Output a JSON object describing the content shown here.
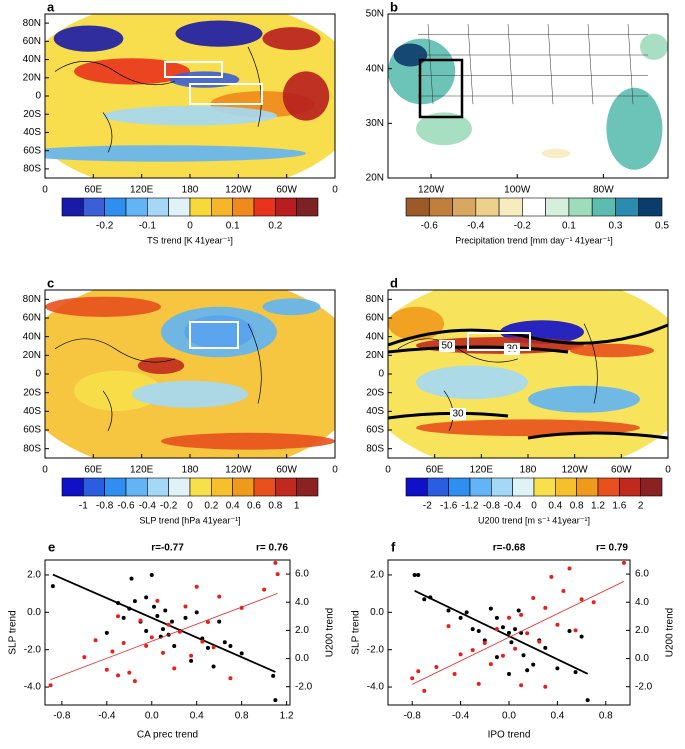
{
  "chart_data": [
    {
      "type": "map",
      "label": "a",
      "xlim": [
        0,
        360
      ],
      "ylim": [
        -90,
        90
      ],
      "xticks": [
        0,
        {
          "value": 60,
          "label": "60E"
        },
        {
          "value": 120,
          "label": "120E"
        },
        180,
        {
          "value": 240,
          "label": "120W"
        },
        {
          "value": 300,
          "label": "60W"
        },
        {
          "value": 360,
          "label": "0"
        }
      ],
      "yticks": [
        {
          "value": 80,
          "label": "80N"
        },
        {
          "value": 60,
          "label": "60N"
        },
        {
          "value": 40,
          "label": "40N"
        },
        {
          "value": 20,
          "label": "20N"
        },
        0,
        {
          "value": -20,
          "label": "20S"
        },
        {
          "value": -40,
          "label": "40S"
        },
        {
          "value": -60,
          "label": "60S"
        },
        {
          "value": -80,
          "label": "80S"
        }
      ],
      "colors": [
        "#1a1aa8",
        "#3a5fd6",
        "#2f8ff0",
        "#62b4f4",
        "#a4d8f6",
        "#dff2f8",
        "#f7d93a",
        "#f5b62c",
        "#f08a1c",
        "#e8341c",
        "#b81e1e",
        "#7d2222"
      ],
      "colorbar_ticks": [
        -0.2,
        -0.1,
        0,
        0.1,
        0.2
      ],
      "colorbar_label": "TS trend [K 41year⁻¹]"
    },
    {
      "type": "map",
      "label": "b",
      "xlim": [
        -130,
        -65
      ],
      "ylim": [
        20,
        50
      ],
      "xticks": [
        {
          "value": -120,
          "label": "120W"
        },
        {
          "value": -100,
          "label": "100W"
        },
        {
          "value": -80,
          "label": "80W"
        }
      ],
      "yticks": [
        {
          "value": 50,
          "label": "50N"
        },
        {
          "value": 40,
          "label": "40N"
        },
        {
          "value": 30,
          "label": "30N"
        },
        {
          "value": 20,
          "label": "20N"
        }
      ],
      "colors": [
        "#9c5a28",
        "#c0803c",
        "#d8a860",
        "#ecd08c",
        "#f6ecc0",
        "#ffffff",
        "#d4f0dc",
        "#9edcbc",
        "#5cbcb0",
        "#2c8cb0",
        "#0c3c6c"
      ],
      "colorbar_ticks": [
        -0.6,
        -0.4,
        -0.2,
        0.1,
        0.3,
        0.5
      ],
      "colorbar_label": "Precipitation trend [mm day⁻¹ 41year⁻¹]"
    },
    {
      "type": "map",
      "label": "c",
      "xlim": [
        0,
        360
      ],
      "ylim": [
        -90,
        90
      ],
      "xticks": [
        0,
        {
          "value": 60,
          "label": "60E"
        },
        {
          "value": 120,
          "label": "120E"
        },
        180,
        {
          "value": 240,
          "label": "120W"
        },
        {
          "value": 300,
          "label": "60W"
        },
        {
          "value": 360,
          "label": "0"
        }
      ],
      "yticks": [
        {
          "value": 80,
          "label": "80N"
        },
        {
          "value": 60,
          "label": "60N"
        },
        {
          "value": 40,
          "label": "40N"
        },
        {
          "value": 20,
          "label": "20N"
        },
        0,
        {
          "value": -20,
          "label": "20S"
        },
        {
          "value": -40,
          "label": "40S"
        },
        {
          "value": -60,
          "label": "60S"
        },
        {
          "value": -80,
          "label": "80S"
        }
      ],
      "colors": [
        "#1010c8",
        "#2a5ee0",
        "#2f8ff0",
        "#62b4f4",
        "#a4d8f6",
        "#dff2f8",
        "#f7e04a",
        "#f5c02c",
        "#f09a1c",
        "#e8501c",
        "#c02a1e",
        "#8a2222"
      ],
      "colorbar_ticks": [
        -1,
        -0.8,
        -0.6,
        -0.4,
        -0.2,
        0,
        0.2,
        0.4,
        0.6,
        0.8,
        1
      ],
      "colorbar_label": "SLP trend [hPa 41year⁻¹]"
    },
    {
      "type": "map",
      "label": "d",
      "xlim": [
        0,
        360
      ],
      "ylim": [
        -90,
        90
      ],
      "xticks": [
        0,
        {
          "value": 60,
          "label": "60E"
        },
        {
          "value": 120,
          "label": "120E"
        },
        180,
        {
          "value": 240,
          "label": "120W"
        },
        {
          "value": 300,
          "label": "60W"
        },
        {
          "value": 360,
          "label": "0"
        }
      ],
      "yticks": [
        {
          "value": 80,
          "label": "80N"
        },
        {
          "value": 60,
          "label": "60N"
        },
        {
          "value": 40,
          "label": "40N"
        },
        {
          "value": 20,
          "label": "20N"
        },
        0,
        {
          "value": -20,
          "label": "20S"
        },
        {
          "value": -40,
          "label": "40S"
        },
        {
          "value": -60,
          "label": "60S"
        },
        {
          "value": -80,
          "label": "80S"
        }
      ],
      "colors": [
        "#1010c8",
        "#2a5ee0",
        "#2f8ff0",
        "#62b4f4",
        "#a4d8f6",
        "#dff2f8",
        "#f7e04a",
        "#f5c02c",
        "#f09a1c",
        "#e8501c",
        "#c02a1e",
        "#8a2222"
      ],
      "colorbar_ticks": [
        -2,
        -1.6,
        -1.2,
        -0.8,
        -0.4,
        0,
        0.4,
        0.8,
        1.2,
        1.6,
        2
      ],
      "colorbar_label": "U200 trend [m s⁻¹ 41year⁻¹]",
      "contour_labels": [
        50,
        30,
        30
      ]
    },
    {
      "type": "scatter",
      "label": "e",
      "x_label": "CA prec trend",
      "y_label": "SLP trend",
      "y2_label": "U200 trend",
      "xlim": [
        -0.95,
        1.23
      ],
      "ylim": [
        -4.96,
        2.8
      ],
      "y2lim": [
        -3.3,
        7.0
      ],
      "xticks": [
        -0.8,
        -0.4,
        {
          "value": 0,
          "label": "0.0"
        },
        0.4,
        0.8,
        1.2
      ],
      "yticks": [
        {
          "value": -4,
          "label": "-4.0"
        },
        {
          "value": -2,
          "label": "-2.0"
        },
        {
          "value": 0,
          "label": "0.0"
        },
        {
          "value": 2,
          "label": "2.0"
        }
      ],
      "y2ticks": [
        {
          "value": -2,
          "label": "-2.0"
        },
        {
          "value": 0,
          "label": "0.0"
        },
        {
          "value": 2,
          "label": "2.0"
        },
        {
          "value": 4,
          "label": "4.0"
        },
        {
          "value": 6,
          "label": "6.0"
        }
      ],
      "annotations": [
        {
          "text": "r=-0.77",
          "color": "#000000"
        },
        {
          "text": "r= 0.76",
          "color": "#e8201c"
        }
      ],
      "series": [
        {
          "name": "SLP trend",
          "color": "#000000",
          "axis": "y",
          "x": [
            -0.88,
            -0.3,
            -0.25,
            -0.2,
            -0.15,
            -0.18,
            -0.1,
            -0.05,
            0,
            0.02,
            0.05,
            0.1,
            0.12,
            0.15,
            0.18,
            0.2,
            0.25,
            0.3,
            0.35,
            0.4,
            0.45,
            0.5,
            0.55,
            0.6,
            0.65,
            0.7,
            0.8,
            1.08,
            1.1,
            -0.4,
            -0.05,
            0.08
          ],
          "values": [
            1.4,
            0.5,
            -0.3,
            0.2,
            0.6,
            1.8,
            -0.5,
            -1,
            2.0,
            0.3,
            -0.2,
            -0.9,
            0.1,
            -1.2,
            -0.5,
            -1.8,
            -1.0,
            -0.3,
            -2.6,
            0.0,
            -1.4,
            -1.9,
            -2.9,
            -0.5,
            -1.6,
            -1.8,
            -2.2,
            -3.4,
            -4.7,
            -1.1,
            0.8,
            -1.3
          ]
        },
        {
          "name": "U200 trend",
          "color": "#e8201c",
          "axis": "y2",
          "x": [
            -0.9,
            -0.6,
            -0.5,
            -0.4,
            -0.35,
            -0.3,
            -0.25,
            -0.2,
            -0.15,
            -0.1,
            -0.05,
            0,
            0.05,
            0.1,
            0.15,
            0.2,
            0.25,
            0.3,
            0.35,
            0.4,
            0.45,
            0.5,
            0.55,
            0.6,
            0.7,
            0.8,
            1.0,
            1.1,
            1.12,
            -0.3
          ],
          "values": [
            -1.9,
            0.1,
            1.3,
            -0.8,
            0.5,
            3.0,
            1.1,
            -1.0,
            -1.6,
            2.7,
            0.9,
            1.5,
            4.1,
            0.4,
            2.4,
            -0.7,
            1.9,
            3.7,
            0.2,
            5.1,
            1.2,
            2.6,
            0.8,
            4.4,
            -1.4,
            3.6,
            4.9,
            6.8,
            6.0,
            -1.2
          ]
        }
      ]
    },
    {
      "type": "scatter",
      "label": "f",
      "x_label": "IPO trend",
      "y_label": "SLP trend",
      "y2_label": "U200 trend",
      "xlim": [
        -1.0,
        1.0
      ],
      "ylim": [
        -4.96,
        2.8
      ],
      "y2lim": [
        -3.3,
        7.0
      ],
      "xticks": [
        -0.8,
        -0.4,
        {
          "value": 0,
          "label": "0.0"
        },
        0.4,
        0.8
      ],
      "yticks": [
        {
          "value": -4,
          "label": "-4.0"
        },
        {
          "value": -2,
          "label": "-2.0"
        },
        {
          "value": 0,
          "label": "0.0"
        },
        {
          "value": 2,
          "label": "2.0"
        }
      ],
      "y2ticks": [
        {
          "value": -2,
          "label": "-2.0"
        },
        {
          "value": 0,
          "label": "0.0"
        },
        {
          "value": 2,
          "label": "2.0"
        },
        {
          "value": 4,
          "label": "4.0"
        },
        {
          "value": 6,
          "label": "6.0"
        }
      ],
      "annotations": [
        {
          "text": "r=-0.68",
          "color": "#000000"
        },
        {
          "text": "r= 0.79",
          "color": "#e8201c"
        }
      ],
      "series": [
        {
          "name": "SLP trend",
          "color": "#000000",
          "axis": "y",
          "x": [
            -0.78,
            -0.75,
            -0.7,
            -0.65,
            -0.5,
            -0.4,
            -0.35,
            -0.3,
            -0.25,
            -0.2,
            -0.15,
            -0.1,
            -0.05,
            0,
            0.02,
            0.05,
            0.08,
            0.1,
            0.12,
            0.15,
            0.2,
            0.25,
            0.3,
            0.4,
            0.5,
            0.55,
            0.6,
            0.65,
            -0.1,
            0.0
          ],
          "values": [
            2.0,
            2.0,
            0.7,
            0.8,
            0.1,
            -0.3,
            0.0,
            -0.9,
            -1.0,
            -1.5,
            0.2,
            -0.3,
            -0.8,
            -1.1,
            -1.6,
            -0.9,
            0.1,
            -1.1,
            -2.3,
            -3.1,
            -2.8,
            -1.5,
            -1.9,
            -3.0,
            -1.0,
            -3.2,
            -1.3,
            -4.7,
            -2.4,
            -3.3
          ]
        },
        {
          "name": "U200 trend",
          "color": "#e8201c",
          "axis": "y2",
          "x": [
            -0.8,
            -0.75,
            -0.7,
            -0.6,
            -0.5,
            -0.45,
            -0.4,
            -0.3,
            -0.25,
            -0.2,
            -0.15,
            -0.1,
            -0.05,
            0,
            0.05,
            0.1,
            0.15,
            0.2,
            0.25,
            0.3,
            0.35,
            0.4,
            0.45,
            0.5,
            0.55,
            0.6,
            0.7,
            0.95,
            0.1,
            0.3
          ],
          "values": [
            -1.4,
            -0.9,
            -2.3,
            -0.6,
            2.3,
            -1.1,
            0.3,
            0.6,
            -1.8,
            1.1,
            -0.4,
            2.1,
            0.2,
            2.9,
            0.7,
            3.1,
            1.8,
            4.3,
            1.2,
            3.6,
            5.8,
            2.4,
            4.8,
            6.4,
            2.0,
            4.2,
            4.0,
            6.8,
            -1.9,
            -2.0
          ]
        }
      ]
    }
  ]
}
